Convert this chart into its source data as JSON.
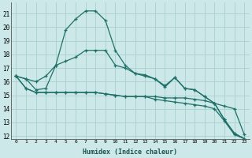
{
  "xlabel": "Humidex (Indice chaleur)",
  "background_color": "#cce8e8",
  "grid_color": "#aacfcf",
  "line_color": "#1e7068",
  "xmin": -0.5,
  "xmax": 23.5,
  "ymin": 11.8,
  "ymax": 21.8,
  "yticks": [
    12,
    13,
    14,
    15,
    16,
    17,
    18,
    19,
    20,
    21
  ],
  "xticks": [
    0,
    1,
    2,
    3,
    4,
    5,
    6,
    7,
    8,
    9,
    10,
    11,
    12,
    13,
    14,
    15,
    16,
    17,
    18,
    19,
    20,
    21,
    22,
    23
  ],
  "series": [
    {
      "x": [
        0,
        1,
        2,
        3,
        4,
        5,
        6,
        7,
        8,
        9,
        10,
        11,
        12,
        13,
        14,
        15,
        16,
        17,
        18,
        19,
        20,
        21,
        22,
        23
      ],
      "y": [
        16.4,
        16.2,
        15.4,
        15.5,
        17.2,
        19.8,
        20.6,
        21.2,
        21.2,
        20.5,
        18.3,
        17.2,
        16.6,
        16.5,
        16.2,
        15.6,
        16.3,
        15.5,
        15.4,
        14.9,
        14.4,
        13.2,
        12.2,
        11.8
      ],
      "marker": true
    },
    {
      "x": [
        0,
        1,
        2,
        3,
        4,
        5,
        6,
        7,
        8,
        9,
        10,
        11,
        12,
        13,
        14,
        15,
        16,
        17,
        18,
        19,
        20,
        21,
        22,
        23
      ],
      "y": [
        16.4,
        16.2,
        16.0,
        16.4,
        17.2,
        17.5,
        17.8,
        18.3,
        18.3,
        18.3,
        17.2,
        17.0,
        16.6,
        16.4,
        16.2,
        15.7,
        16.3,
        15.5,
        15.4,
        14.9,
        14.4,
        13.2,
        12.2,
        11.8
      ],
      "marker": true
    },
    {
      "x": [
        0,
        1,
        2,
        3,
        4,
        5,
        6,
        7,
        8,
        9,
        10,
        11,
        12,
        13,
        14,
        15,
        16,
        17,
        18,
        19,
        20,
        21,
        22,
        23
      ],
      "y": [
        16.4,
        15.5,
        15.2,
        15.2,
        15.2,
        15.2,
        15.2,
        15.2,
        15.2,
        15.1,
        15.0,
        14.9,
        14.9,
        14.9,
        14.9,
        14.8,
        14.8,
        14.8,
        14.7,
        14.6,
        14.4,
        14.2,
        14.0,
        12.1
      ],
      "marker": true
    },
    {
      "x": [
        0,
        1,
        2,
        3,
        4,
        5,
        6,
        7,
        8,
        9,
        10,
        11,
        12,
        13,
        14,
        15,
        16,
        17,
        18,
        19,
        20,
        21,
        22,
        23
      ],
      "y": [
        16.4,
        15.5,
        15.2,
        15.2,
        15.2,
        15.2,
        15.2,
        15.2,
        15.2,
        15.1,
        15.0,
        14.9,
        14.9,
        14.9,
        14.7,
        14.6,
        14.5,
        14.4,
        14.3,
        14.2,
        14.0,
        13.1,
        12.1,
        11.8
      ],
      "marker": true
    }
  ]
}
